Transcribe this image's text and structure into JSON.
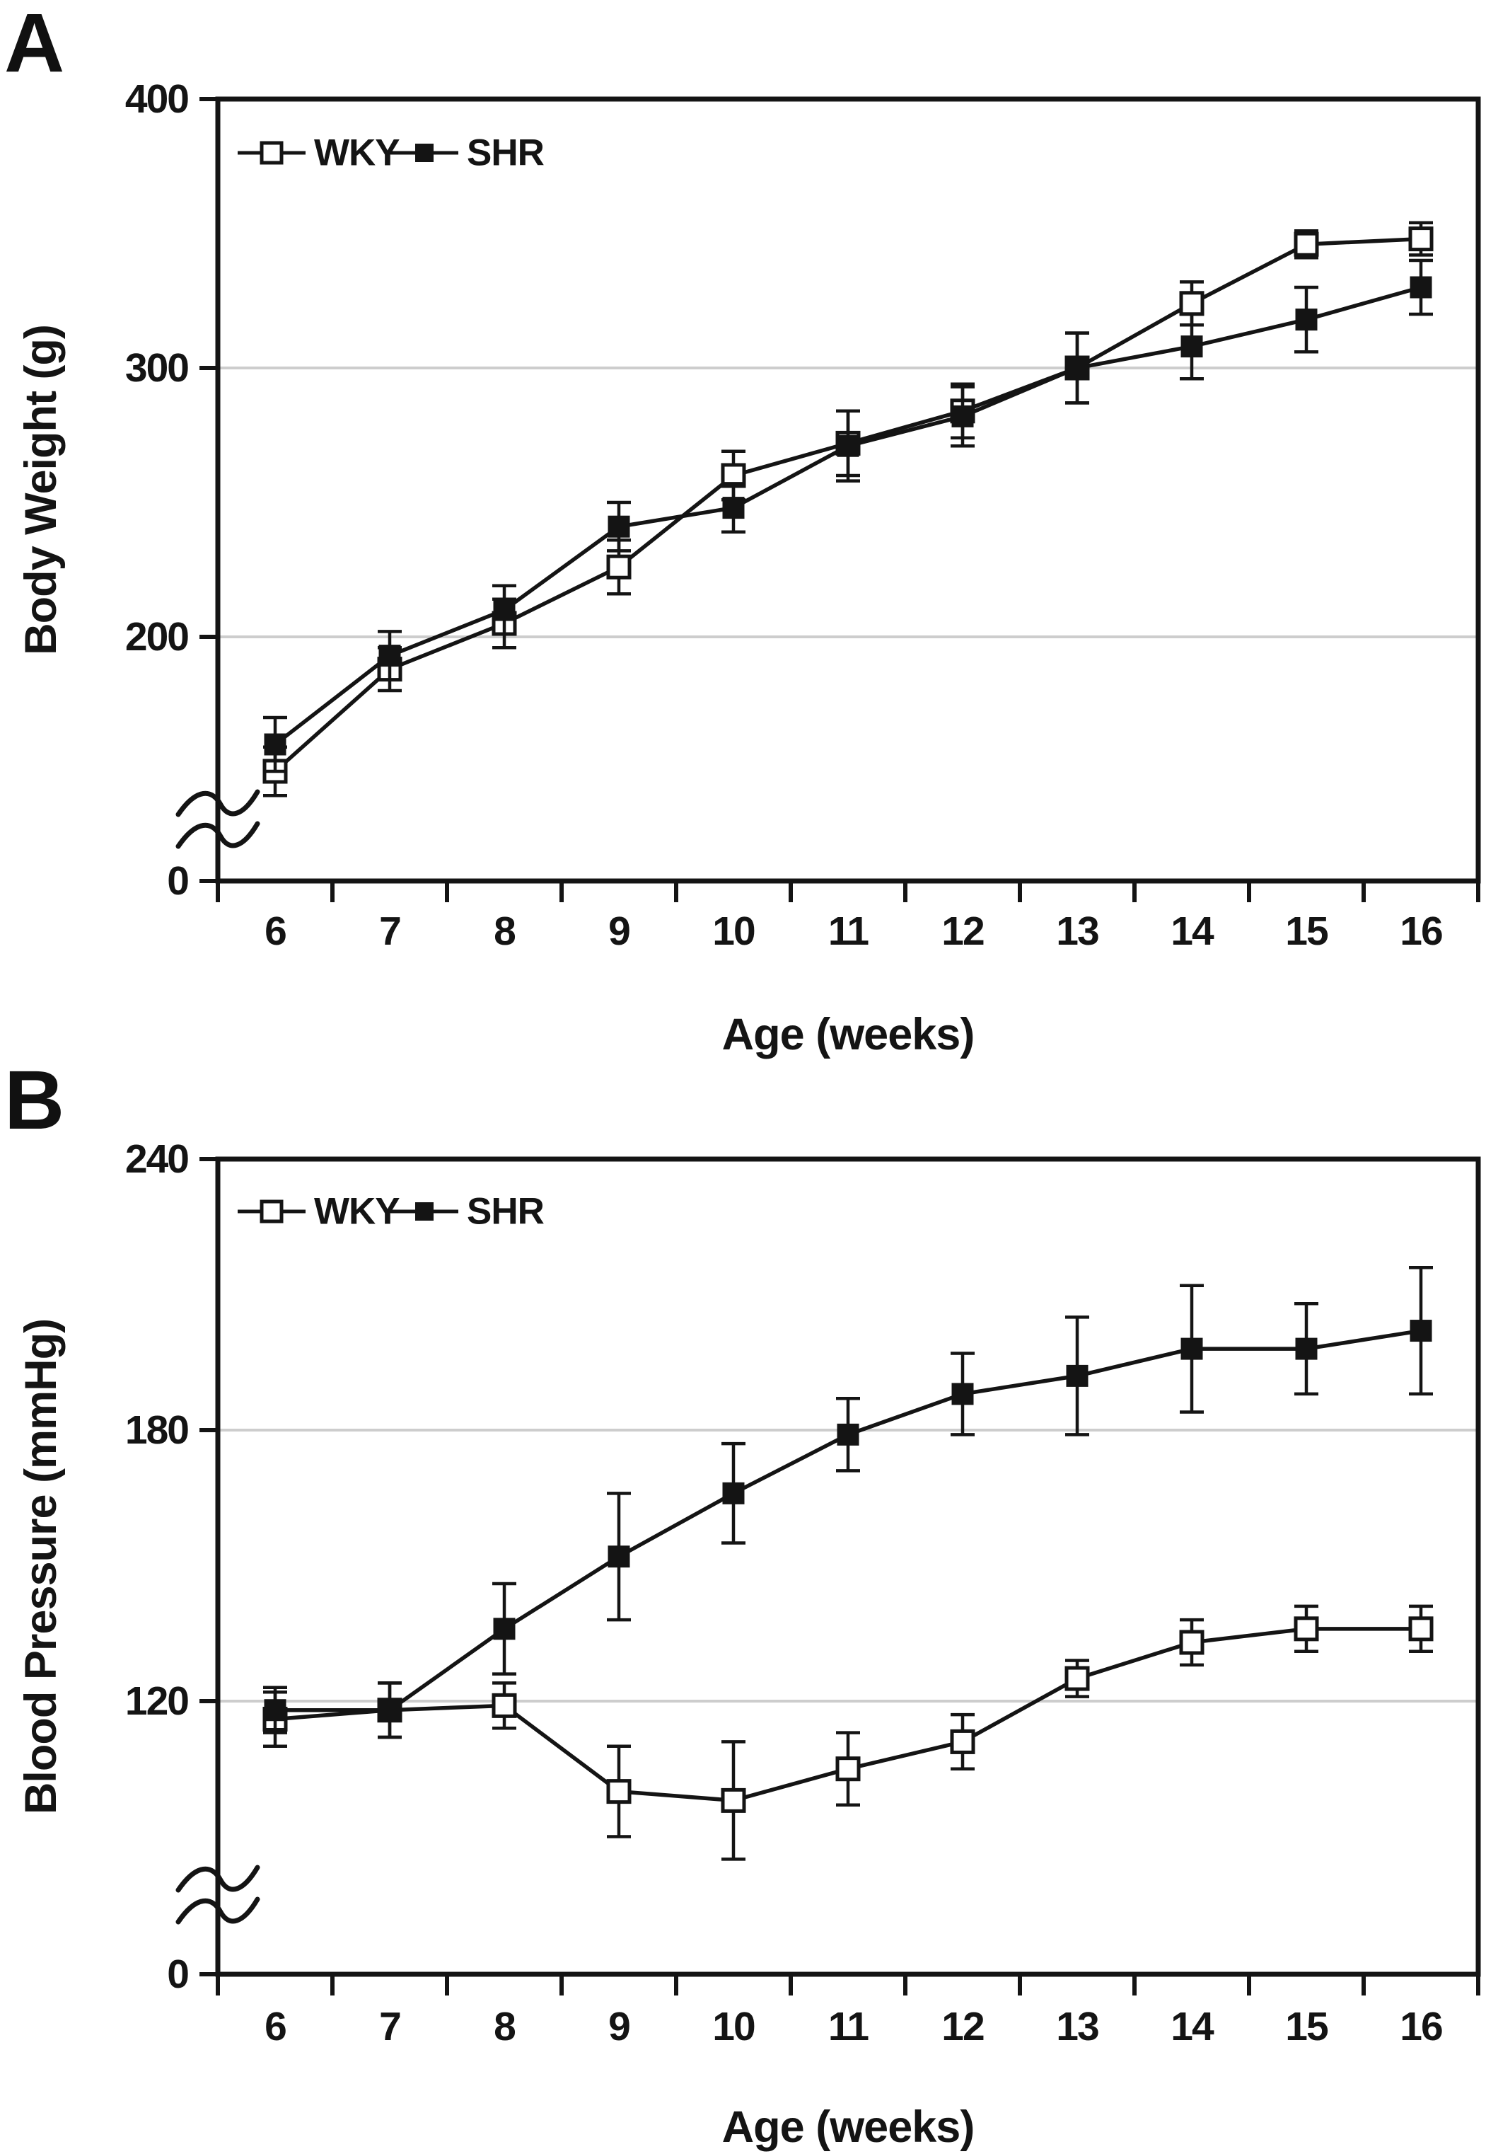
{
  "figure": {
    "background": "#ffffff",
    "text_color": "#141414",
    "grid_color": "#cdcdcd",
    "line_color": "#141414"
  },
  "chart_data": [
    {
      "panel": "A",
      "type": "line",
      "title": "",
      "xlabel": "Age (weeks)",
      "ylabel": "Body Weight (g)",
      "x_categories": [
        6,
        7,
        8,
        9,
        10,
        11,
        12,
        13,
        14,
        15,
        16
      ],
      "ylim": [
        0,
        400
      ],
      "y_axis": {
        "ticks": [
          400,
          300,
          200,
          0
        ],
        "gridlines": [
          300,
          200
        ],
        "axis_break": true,
        "break_between": [
          0,
          150
        ],
        "grid_on": true
      },
      "legend": {
        "position": "top-left",
        "entries": [
          "WKY",
          "SHR"
        ]
      },
      "series": [
        {
          "name": "WKY",
          "marker": "open-square",
          "values": [
            150,
            188,
            205,
            226,
            260,
            272,
            284,
            300,
            324,
            346,
            348
          ],
          "errors": [
            9,
            8,
            9,
            10,
            9,
            12,
            10,
            13,
            8,
            5,
            6
          ]
        },
        {
          "name": "SHR",
          "marker": "filled-square",
          "values": [
            160,
            193,
            210,
            241,
            248,
            271,
            282,
            300,
            308,
            318,
            330
          ],
          "errors": [
            10,
            9,
            9,
            9,
            9,
            13,
            11,
            13,
            12,
            12,
            10
          ]
        }
      ]
    },
    {
      "panel": "B",
      "type": "line",
      "title": "",
      "xlabel": "Age (weeks)",
      "ylabel": "Blood Pressure (mmHg)",
      "x_categories": [
        6,
        7,
        8,
        9,
        10,
        11,
        12,
        13,
        14,
        15,
        16
      ],
      "ylim": [
        0,
        240
      ],
      "y_axis": {
        "ticks": [
          240,
          180,
          120,
          0
        ],
        "gridlines": [
          180,
          120
        ],
        "axis_break": true,
        "break_between": [
          0,
          85
        ],
        "grid_on": true
      },
      "legend": {
        "position": "top-left",
        "entries": [
          "WKY",
          "SHR"
        ]
      },
      "series": [
        {
          "name": "WKY",
          "marker": "open-square",
          "values": [
            116,
            118,
            119,
            100,
            98,
            105,
            111,
            125,
            133,
            136,
            136
          ],
          "errors": [
            6,
            6,
            5,
            10,
            13,
            8,
            6,
            4,
            5,
            5,
            5
          ]
        },
        {
          "name": "SHR",
          "marker": "filled-square",
          "values": [
            118,
            118,
            136,
            152,
            166,
            179,
            188,
            192,
            198,
            198,
            202
          ],
          "errors": [
            5,
            6,
            10,
            14,
            11,
            8,
            9,
            13,
            14,
            10,
            14
          ]
        }
      ]
    }
  ]
}
